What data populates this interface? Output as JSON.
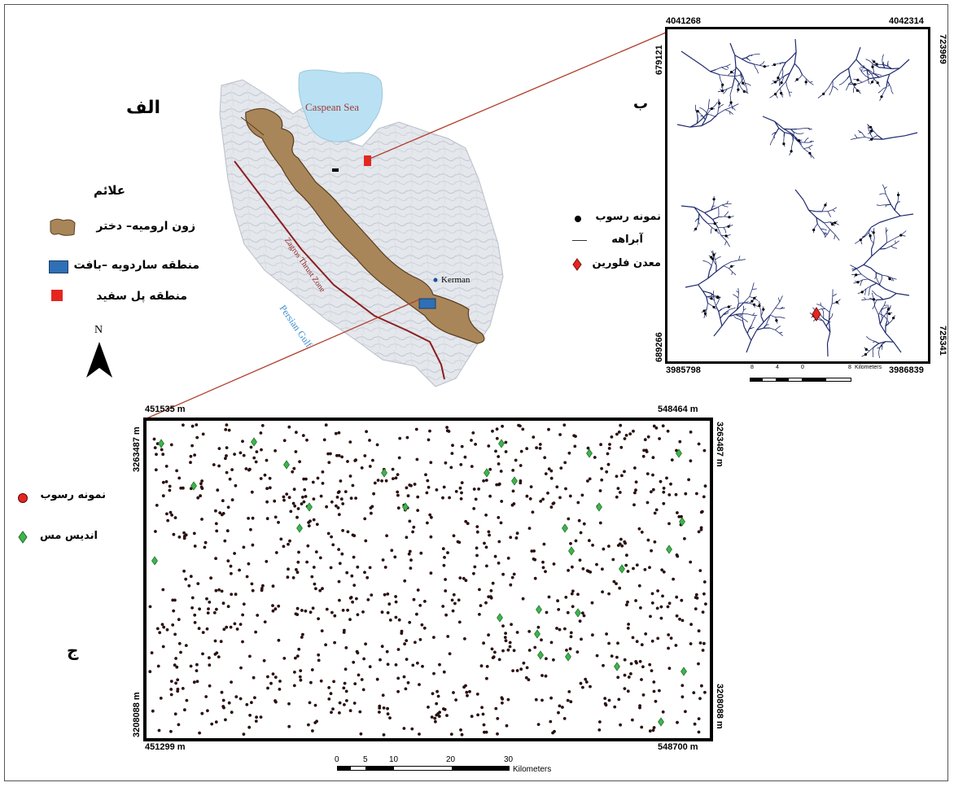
{
  "panel_a": {
    "letter": "الف",
    "legend_title": "علائم",
    "legend_items": [
      {
        "label": "زون ارومیه– دختر",
        "symbol": "brown-zone"
      },
      {
        "label": "منطقه ساردویه –بافت",
        "symbol": "blue-rect"
      },
      {
        "label": "منطقه پل سفید",
        "symbol": "red-rect"
      }
    ],
    "north_label": "N",
    "sea_label": "Caspean Sea",
    "gulf_label": "Persian Gulf",
    "fault_label": "Zagros Thrust Zone",
    "city_label": "Kerman",
    "colors": {
      "zone": "#a98659",
      "sea": "#b9e1f3",
      "fault": "#8b1f1f",
      "blue_area": "#2f6fb5",
      "red_area": "#e52620"
    }
  },
  "panel_b": {
    "letter": "ب",
    "coords": {
      "top_left": "4041268",
      "top_right": "4042314",
      "left_top": "679121",
      "left_bottom": "689266",
      "right_top": "723969",
      "right_bottom": "725341",
      "bottom_left": "3985798",
      "bottom_right": "3986839"
    },
    "legend_items": [
      {
        "label": "نمونه رسوب",
        "symbol": "black-dot"
      },
      {
        "label": "آبراهه",
        "symbol": "line"
      },
      {
        "label": "معدن فلورین",
        "symbol": "red-diamond"
      }
    ],
    "scale_ticks": [
      "8",
      "4",
      "0",
      "8"
    ],
    "scale_unit": "Kilometers",
    "colors": {
      "stream": "#1e2a6e",
      "mine": "#e52620"
    }
  },
  "panel_c": {
    "letter": "ج",
    "coords": {
      "top_left": "451535 m",
      "top_right": "548464 m",
      "bottom_left": "451299 m",
      "bottom_right": "548700 m",
      "left_top": "3263487 m",
      "left_bottom": "3208088 m",
      "right_top": "3263487 m",
      "right_bottom": "3208088 m"
    },
    "legend_items": [
      {
        "label": "نمونه رسوب",
        "symbol": "red-circle"
      },
      {
        "label": "اندیس مس",
        "symbol": "green-diamond"
      }
    ],
    "scale_ticks": [
      "0",
      "5",
      "10",
      "20",
      "30"
    ],
    "scale_unit": "Kilometers",
    "colors": {
      "sample": "#2a0f0f",
      "copper": "#3db54a"
    }
  }
}
